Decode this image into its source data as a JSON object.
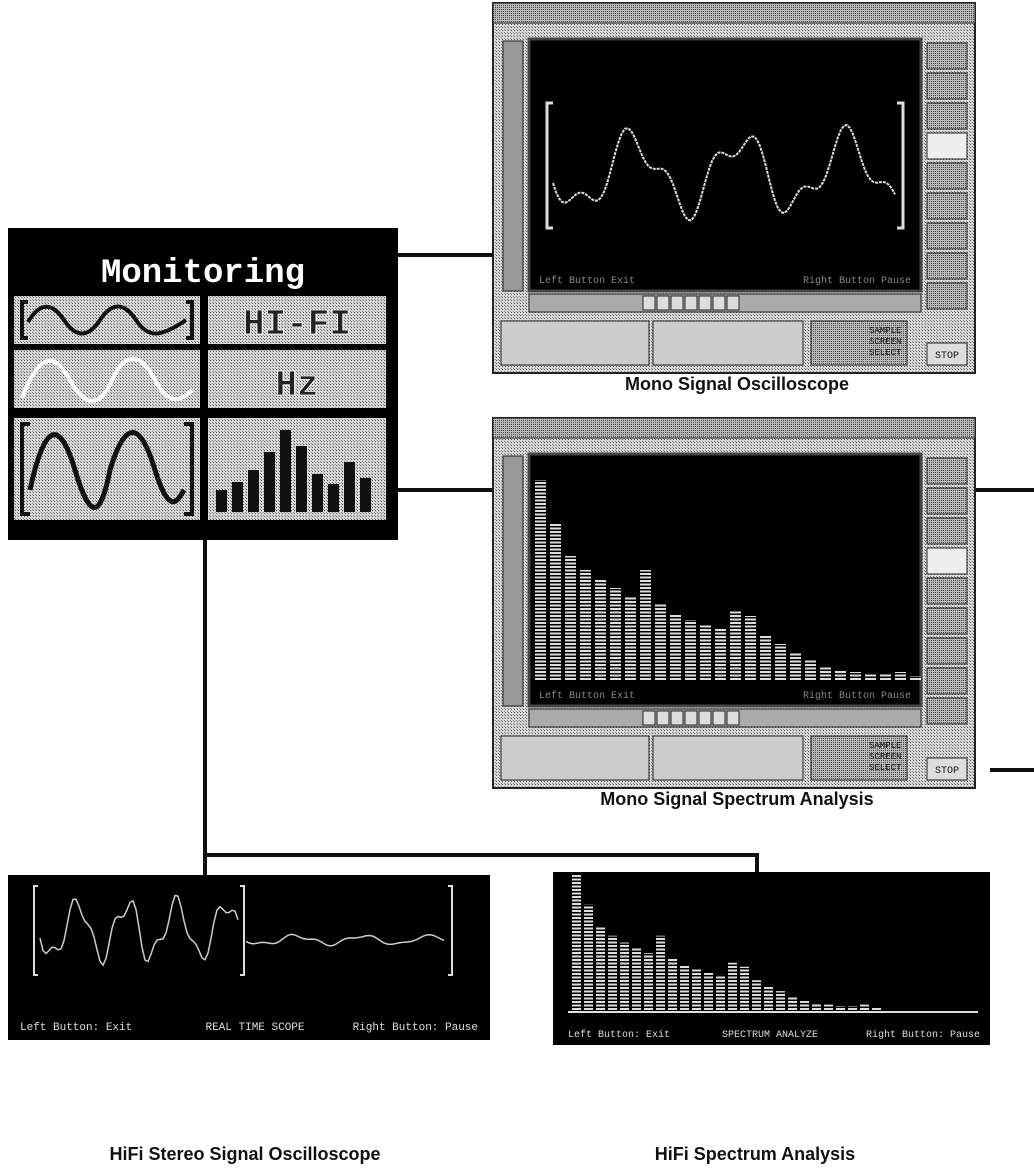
{
  "panel": {
    "title": "Monitoring",
    "hifi": "HI-FI",
    "hz": "Hz"
  },
  "windows": [
    {
      "caption": "Mono Signal Oscilloscope",
      "left": "Left Button Exit",
      "right": "Right Button Pause",
      "select": [
        "SAMPLE",
        "SCREEN",
        "SELECT"
      ],
      "stop": "STOP"
    },
    {
      "caption": "Mono Signal  Spectrum Analysis",
      "left": "Left Button Exit",
      "right": "Right Button Pause",
      "select": [
        "SAMPLE",
        "SCREEN",
        "SELECT"
      ],
      "stop": "STOP"
    }
  ],
  "stereo": {
    "caption": "HiFi Stereo Signal Oscilloscope",
    "left": "Left Button: Exit",
    "mode": "REAL TIME SCOPE",
    "right": "Right Button: Pause"
  },
  "spectrum": {
    "caption": "HiFi Spectrum Analysis",
    "left": "Left Button: Exit",
    "mode": "SPECTRUM ANALYZE",
    "right": "Right Button: Pause"
  }
}
